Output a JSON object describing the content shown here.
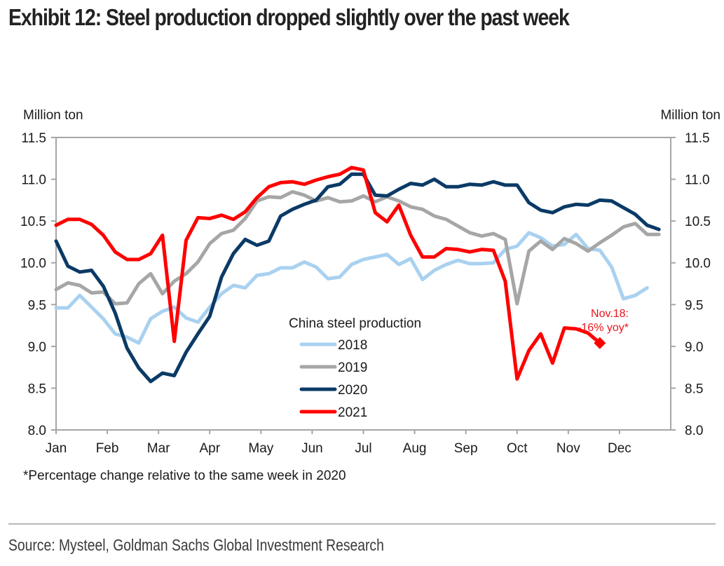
{
  "title": "Exhibit 12: Steel production dropped slightly over the past week",
  "footnote": "*Percentage change relative to the same week in 2020",
  "source": "Source: Mysteel, Goldman Sachs Global Investment Research",
  "chart_data": {
    "type": "line",
    "title": "Exhibit 12: Steel production dropped slightly over the past week",
    "ylabel_left": "Million ton",
    "ylabel_right": "Million ton",
    "xlabel": "",
    "ylim": [
      8.0,
      11.5
    ],
    "yticks": [
      "8.0",
      "8.5",
      "9.0",
      "9.5",
      "10.0",
      "10.5",
      "11.0",
      "11.5"
    ],
    "ytick_values": [
      8.0,
      8.5,
      9.0,
      9.5,
      10.0,
      10.5,
      11.0,
      11.5
    ],
    "x_categories": [
      "Jan",
      "Feb",
      "Mar",
      "Apr",
      "May",
      "Jun",
      "Jul",
      "Aug",
      "Sep",
      "Oct",
      "Nov",
      "Dec"
    ],
    "x_unit": "week of year",
    "xlim": [
      0,
      52
    ],
    "grid": false,
    "legend": {
      "title": "China steel production",
      "placement": "center-bottom"
    },
    "series": [
      {
        "name": "2018",
        "color": "#a9d1f0",
        "values": [
          9.46,
          9.46,
          9.61,
          9.47,
          9.33,
          9.15,
          9.11,
          9.04,
          9.33,
          9.42,
          9.47,
          9.34,
          9.29,
          9.47,
          9.63,
          9.73,
          9.7,
          9.85,
          9.87,
          9.94,
          9.94,
          10.01,
          9.95,
          9.81,
          9.83,
          9.98,
          10.04,
          10.07,
          10.1,
          9.98,
          10.05,
          9.8,
          9.91,
          9.98,
          10.03,
          9.99,
          9.99,
          10.0,
          10.16,
          10.2,
          10.36,
          10.3,
          10.2,
          10.22,
          10.34,
          10.17,
          10.15,
          9.95,
          9.57,
          9.61,
          9.7
        ]
      },
      {
        "name": "2019",
        "color": "#a6a6a6",
        "values": [
          9.68,
          9.76,
          9.73,
          9.64,
          9.65,
          9.51,
          9.52,
          9.75,
          9.87,
          9.63,
          9.78,
          9.87,
          10.01,
          10.23,
          10.35,
          10.39,
          10.53,
          10.74,
          10.79,
          10.78,
          10.85,
          10.81,
          10.74,
          10.78,
          10.73,
          10.74,
          10.8,
          10.73,
          10.79,
          10.74,
          10.67,
          10.64,
          10.56,
          10.52,
          10.44,
          10.36,
          10.32,
          10.35,
          10.28,
          9.51,
          10.14,
          10.26,
          10.16,
          10.29,
          10.23,
          10.14,
          10.24,
          10.33,
          10.43,
          10.47,
          10.34,
          10.34
        ]
      },
      {
        "name": "2020",
        "color": "#0b3a66",
        "values": [
          10.26,
          9.96,
          9.89,
          9.91,
          9.72,
          9.4,
          8.98,
          8.74,
          8.58,
          8.68,
          8.65,
          8.93,
          9.15,
          9.36,
          9.83,
          10.11,
          10.28,
          10.21,
          10.26,
          10.56,
          10.64,
          10.7,
          10.75,
          10.91,
          10.94,
          11.06,
          11.06,
          10.81,
          10.8,
          10.88,
          10.95,
          10.93,
          11.0,
          10.91,
          10.91,
          10.94,
          10.93,
          10.97,
          10.93,
          10.93,
          10.72,
          10.63,
          10.6,
          10.67,
          10.7,
          10.69,
          10.75,
          10.74,
          10.66,
          10.58,
          10.45,
          10.4
        ]
      },
      {
        "name": "2021",
        "color": "#ff0000",
        "values": [
          10.45,
          10.52,
          10.52,
          10.46,
          10.33,
          10.13,
          10.04,
          10.04,
          10.11,
          10.33,
          9.06,
          10.27,
          10.54,
          10.53,
          10.57,
          10.52,
          10.61,
          10.78,
          10.91,
          10.96,
          10.97,
          10.94,
          10.99,
          11.03,
          11.06,
          11.14,
          11.11,
          10.6,
          10.49,
          10.69,
          10.33,
          10.07,
          10.07,
          10.17,
          10.16,
          10.13,
          10.16,
          10.15,
          9.78,
          8.61,
          8.95,
          9.15,
          8.8,
          9.22,
          9.21,
          9.16,
          9.04
        ]
      }
    ],
    "annotation": {
      "text_line1": "Nov.18:",
      "text_line2": "-16% yoy*",
      "series": "2021",
      "marker": "diamond",
      "color": "#e8141c"
    }
  }
}
